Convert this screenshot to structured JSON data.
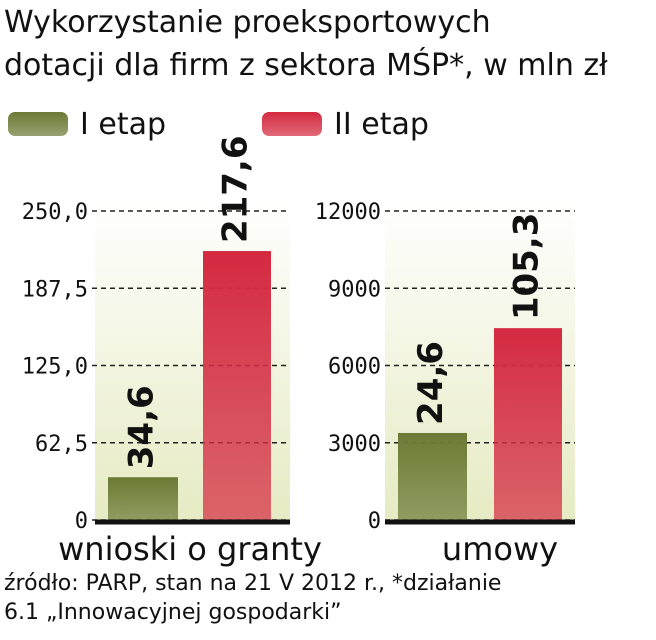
{
  "title": [
    "Wykorzystanie proeksportowych",
    "dotacji dla firm z sektora MŚP*, w mln zł"
  ],
  "source": [
    "źródło: PARP, stan na 21 V 2012 r., *działanie",
    "6.1 „Innowacyjnej gospodarki”"
  ],
  "chart_data": [
    {
      "type": "bar",
      "categories": [
        "wnioski o granty"
      ],
      "series": [
        {
          "name": "I etap",
          "color": "#6b7a35",
          "values": [
            34.6
          ],
          "value_labels": [
            "34,6"
          ]
        },
        {
          "name": "II etap",
          "color": "#d42a40",
          "values": [
            217.6
          ],
          "value_labels": [
            "217,6"
          ]
        }
      ],
      "ylim": [
        0,
        250
      ],
      "yticks": [
        0,
        {
          "value": 62.5,
          "label": "62,5"
        },
        {
          "value": 125,
          "label": "125,0"
        },
        {
          "value": 187.5,
          "label": "187,5"
        },
        {
          "value": 250,
          "label": "250,0"
        }
      ],
      "grid": true
    },
    {
      "type": "bar",
      "categories": [
        "umowy"
      ],
      "series": [
        {
          "color": "#6b7a35",
          "values": [
            3380
          ],
          "annotations": [
            "24,6"
          ]
        },
        {
          "color": "#d42a40",
          "values": [
            7450
          ],
          "annotations": [
            "105,3"
          ]
        }
      ],
      "ylim": [
        0,
        12000
      ],
      "yticks": [
        0,
        3000,
        6000,
        9000,
        12000
      ],
      "grid": true
    }
  ]
}
